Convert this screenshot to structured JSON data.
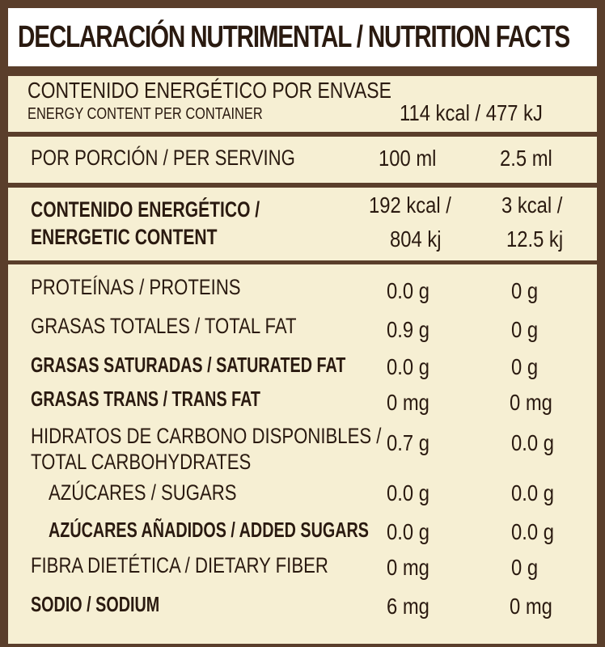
{
  "title": "DECLARACIÓN NUTRIMENTAL / NUTRITION FACTS",
  "energy_container": {
    "label_es": "CONTENIDO ENERGÉTICO POR ENVASE",
    "label_en": "ENERGY CONTENT PER CONTAINER",
    "value": "114 kcal / 477 kJ"
  },
  "serving": {
    "label": "POR PORCIÓN / PER SERVING",
    "col1": "100 ml",
    "col2": "2.5 ml"
  },
  "energetic": {
    "label_line1": "CONTENIDO ENERGÉTICO /",
    "label_line2": "ENERGETIC CONTENT",
    "col1_line1": "192 kcal /",
    "col1_line2": "804 kj",
    "col2_line1": "3 kcal /",
    "col2_line2": "12.5 kj"
  },
  "nutrients": [
    {
      "label": "PROTEÍNAS / PROTEINS",
      "col1": "0.0 g",
      "col2": "0 g"
    },
    {
      "label": "GRASAS TOTALES / TOTAL FAT",
      "col1": "0.9 g",
      "col2": "0 g"
    },
    {
      "label": "GRASAS SATURADAS / SATURATED FAT",
      "col1": "0.0 g",
      "col2": "0 g"
    },
    {
      "label": "GRASAS TRANS / TRANS FAT",
      "col1": "0 mg",
      "col2": "0 mg"
    },
    {
      "label_line1": "HIDRATOS DE CARBONO DISPONIBLES /",
      "label_line2": "TOTAL CARBOHYDRATES",
      "col1": "0.7 g",
      "col2": "0.0 g"
    },
    {
      "label": "AZÚCARES / SUGARS",
      "col1": "0.0 g",
      "col2": "0.0 g"
    },
    {
      "label": "AZÚCARES AÑADIDOS / ADDED SUGARS",
      "col1": "0.0 g",
      "col2": "0.0 g"
    },
    {
      "label": "FIBRA DIETÉTICA / DIETARY FIBER",
      "col1": "0 mg",
      "col2": "0 g"
    },
    {
      "label": "SODIO / SODIUM",
      "col1": "6 mg",
      "col2": "0 mg"
    }
  ]
}
